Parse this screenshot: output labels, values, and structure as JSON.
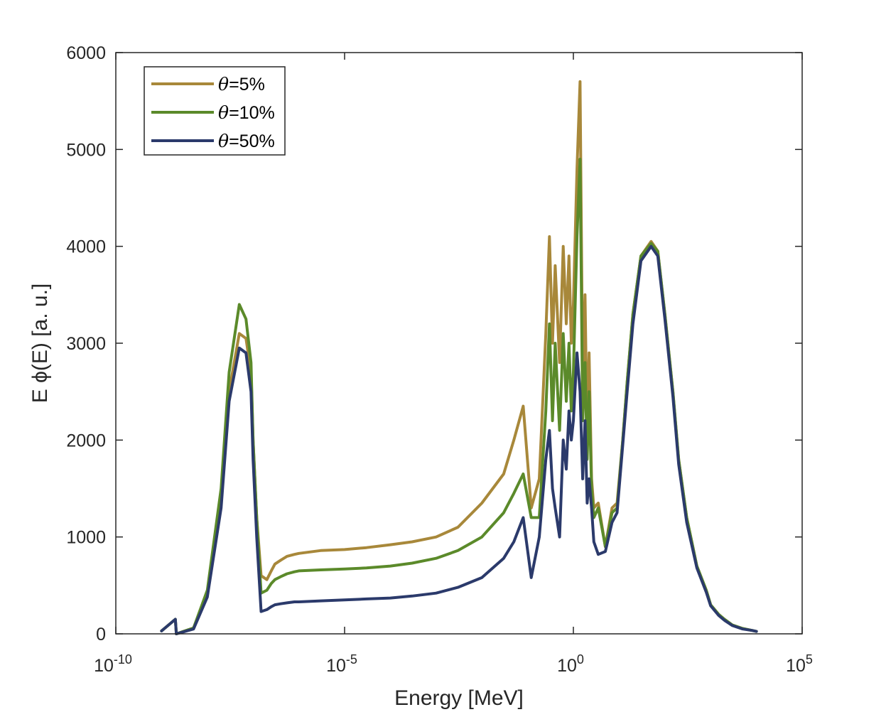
{
  "chart_data": {
    "type": "line",
    "title": "",
    "xlabel": "Energy [MeV]",
    "ylabel": "E ϕ(E) [a. u.]",
    "xscale": "log",
    "xlim": [
      1e-10,
      100000
    ],
    "ylim": [
      0,
      6000
    ],
    "x_ticks": [
      {
        "base": "10",
        "exp": "-10"
      },
      {
        "base": "10",
        "exp": "-5"
      },
      {
        "base": "10",
        "exp": "0"
      },
      {
        "base": "10",
        "exp": "5"
      }
    ],
    "y_ticks": [
      "0",
      "1000",
      "2000",
      "3000",
      "4000",
      "5000",
      "6000"
    ],
    "grid": false,
    "legend_position": "top-left",
    "legend_theta": "θ",
    "series": [
      {
        "name": "=5%",
        "color": "#A8883A",
        "x": [
          1e-09,
          2e-09,
          2.1e-09,
          5e-09,
          1e-08,
          2e-08,
          3e-08,
          5e-08,
          7e-08,
          9e-08,
          1e-07,
          1.2e-07,
          1.5e-07,
          2e-07,
          2.5e-07,
          3e-07,
          4e-07,
          5.5e-07,
          8e-07,
          1e-06,
          1e-06,
          3e-06,
          1e-05,
          3e-05,
          0.0001,
          0.0003,
          0.001,
          0.003,
          0.01,
          0.03,
          0.05,
          0.08,
          0.12,
          0.18,
          0.25,
          0.3,
          0.35,
          0.4,
          0.5,
          0.6,
          0.7,
          0.8,
          0.9,
          1.0,
          1.2,
          1.4,
          1.6,
          1.8,
          2.0,
          2.2,
          2.5,
          2.8,
          3.5,
          5,
          7,
          9,
          12,
          15,
          20,
          30,
          50,
          70,
          100,
          150,
          200,
          300,
          500,
          800,
          1000,
          1500,
          2000,
          3000,
          5000,
          8000,
          10000
        ],
        "y": [
          30,
          150,
          0,
          60,
          400,
          1400,
          2500,
          3100,
          3050,
          2700,
          2000,
          1200,
          600,
          560,
          650,
          720,
          760,
          800,
          820,
          830,
          830,
          860,
          870,
          890,
          920,
          950,
          1000,
          1100,
          1350,
          1650,
          2000,
          2350,
          1300,
          1600,
          3100,
          4100,
          3000,
          3800,
          2800,
          4000,
          3200,
          3900,
          3000,
          3400,
          4800,
          5700,
          2600,
          3500,
          2000,
          2900,
          1600,
          1300,
          1350,
          900,
          1300,
          1350,
          2000,
          2600,
          3300,
          3900,
          4050,
          3950,
          3300,
          2500,
          1800,
          1200,
          700,
          450,
          300,
          200,
          150,
          90,
          55,
          35,
          25
        ]
      },
      {
        "name": "=10%",
        "color": "#5B8A2A",
        "x": [
          1e-09,
          2e-09,
          2.1e-09,
          5e-09,
          1e-08,
          2e-08,
          3e-08,
          5e-08,
          7e-08,
          9e-08,
          1e-07,
          1.2e-07,
          1.5e-07,
          2e-07,
          2.5e-07,
          3e-07,
          4e-07,
          5.5e-07,
          8e-07,
          1e-06,
          1e-06,
          3e-06,
          1e-05,
          3e-05,
          0.0001,
          0.0003,
          0.001,
          0.003,
          0.01,
          0.03,
          0.05,
          0.08,
          0.12,
          0.18,
          0.25,
          0.3,
          0.35,
          0.4,
          0.5,
          0.6,
          0.7,
          0.8,
          0.9,
          1.0,
          1.2,
          1.4,
          1.6,
          1.8,
          2.0,
          2.2,
          2.5,
          2.8,
          3.5,
          5,
          7,
          9,
          12,
          15,
          20,
          30,
          50,
          70,
          100,
          150,
          200,
          300,
          500,
          800,
          1000,
          1500,
          2000,
          3000,
          5000,
          8000,
          10000
        ],
        "y": [
          30,
          150,
          0,
          60,
          450,
          1500,
          2700,
          3400,
          3250,
          2800,
          2000,
          1200,
          420,
          450,
          520,
          560,
          590,
          620,
          640,
          650,
          650,
          660,
          670,
          680,
          700,
          730,
          780,
          860,
          1000,
          1250,
          1450,
          1650,
          1200,
          1200,
          2300,
          3200,
          2200,
          3000,
          2100,
          3100,
          2400,
          3000,
          2300,
          2700,
          4100,
          4900,
          2200,
          2800,
          1800,
          2500,
          1500,
          1200,
          1300,
          900,
          1250,
          1300,
          2000,
          2600,
          3300,
          3900,
          4030,
          3950,
          3300,
          2500,
          1800,
          1200,
          700,
          450,
          300,
          200,
          150,
          90,
          55,
          35,
          25
        ]
      },
      {
        "name": "=50%",
        "color": "#2B3A6B",
        "x": [
          1e-09,
          2e-09,
          2.1e-09,
          5e-09,
          1e-08,
          2e-08,
          3e-08,
          5e-08,
          7e-08,
          9e-08,
          1e-07,
          1.2e-07,
          1.5e-07,
          2e-07,
          2.5e-07,
          3e-07,
          4e-07,
          5.5e-07,
          8e-07,
          1e-06,
          1e-06,
          3e-06,
          1e-05,
          3e-05,
          0.0001,
          0.0003,
          0.001,
          0.003,
          0.01,
          0.03,
          0.05,
          0.08,
          0.12,
          0.18,
          0.25,
          0.3,
          0.35,
          0.4,
          0.5,
          0.6,
          0.7,
          0.8,
          0.9,
          1.0,
          1.2,
          1.4,
          1.6,
          1.8,
          2.0,
          2.2,
          2.5,
          2.8,
          3.5,
          5,
          7,
          9,
          12,
          15,
          20,
          30,
          50,
          70,
          100,
          150,
          200,
          300,
          500,
          800,
          1000,
          1500,
          2000,
          3000,
          5000,
          8000,
          10000
        ],
        "y": [
          30,
          150,
          0,
          50,
          380,
          1300,
          2400,
          2950,
          2900,
          2500,
          1800,
          1000,
          230,
          250,
          280,
          300,
          310,
          320,
          330,
          330,
          330,
          340,
          350,
          360,
          370,
          390,
          420,
          480,
          580,
          780,
          950,
          1200,
          580,
          1000,
          1800,
          2100,
          1500,
          1300,
          1000,
          2000,
          1700,
          2300,
          2000,
          2200,
          2900,
          2500,
          1600,
          2200,
          1350,
          1600,
          1300,
          950,
          820,
          850,
          1150,
          1250,
          1950,
          2500,
          3200,
          3850,
          4000,
          3900,
          3250,
          2450,
          1750,
          1150,
          680,
          430,
          290,
          190,
          140,
          85,
          50,
          35,
          25
        ]
      }
    ]
  }
}
